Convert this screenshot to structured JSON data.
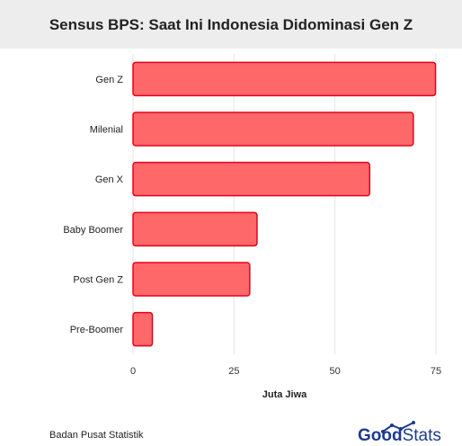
{
  "header": {
    "title": "Sensus BPS: Saat Ini Indonesia Didominasi Gen Z"
  },
  "footer": {
    "source": "Badan Pusat Statistik",
    "logo_bold": "Good",
    "logo_light": "Stats"
  },
  "colors": {
    "bar_fill": "#fe6868",
    "bar_stroke": "#e8001b",
    "grid": "#e6e6e6",
    "title_band": "#ededed",
    "logo": "#1d3a8f"
  },
  "chart_data": {
    "type": "bar",
    "orientation": "horizontal",
    "categories": [
      "Gen Z",
      "Milenial",
      "Gen X",
      "Baby Boomer",
      "Post Gen Z",
      "Pre-Boomer"
    ],
    "values": [
      74.9,
      69.4,
      58.6,
      30.7,
      28.9,
      4.8
    ],
    "xlabel": "Juta Jiwa",
    "xlim": [
      0,
      75
    ],
    "xticks": [
      0,
      25,
      50,
      75
    ],
    "grid": true
  }
}
